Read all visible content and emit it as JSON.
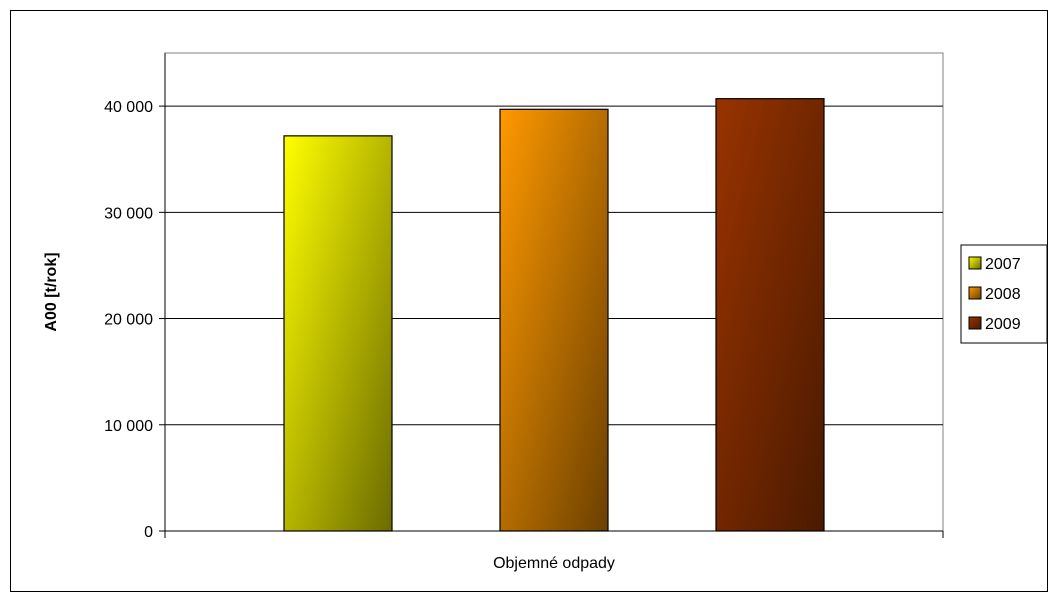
{
  "chart_data": {
    "type": "bar",
    "categories": [
      "Objemné odpady"
    ],
    "series": [
      {
        "name": "2007",
        "values": [
          37200
        ],
        "color": "#ffff00",
        "color_dark": "#6b6b00"
      },
      {
        "name": "2008",
        "values": [
          39700
        ],
        "color": "#ff9900",
        "color_dark": "#6b4000"
      },
      {
        "name": "2009",
        "values": [
          40700
        ],
        "color": "#993300",
        "color_dark": "#4a1a00"
      }
    ],
    "title": "",
    "xlabel": "",
    "ylabel": "A00 [t/rok]",
    "ylim": [
      0,
      45000
    ],
    "yticks": [
      0,
      10000,
      20000,
      30000,
      40000
    ],
    "ytick_labels": [
      "0",
      "10 000",
      "20 000",
      "30 000",
      "40 000"
    ],
    "grid": true,
    "legend_position": "right"
  }
}
